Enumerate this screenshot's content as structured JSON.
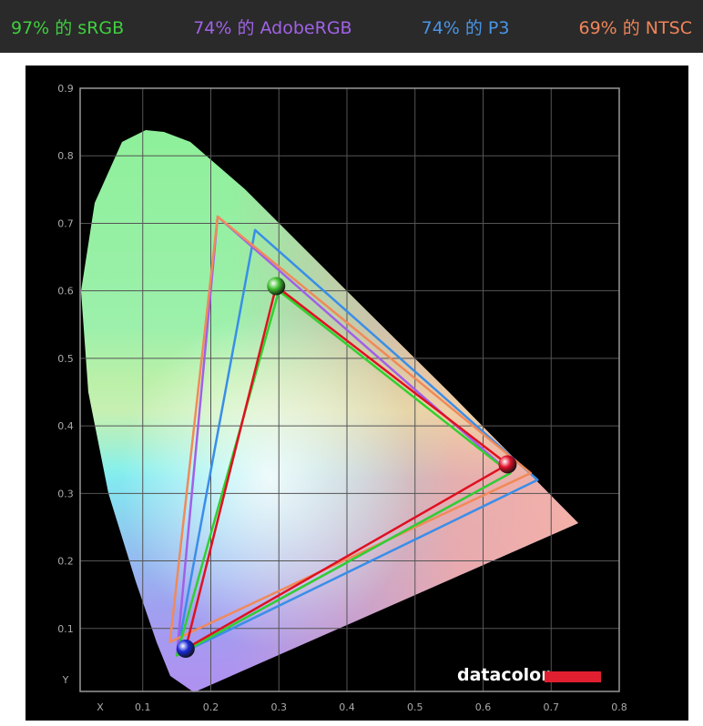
{
  "header": {
    "labels": [
      {
        "text": "97% 的 sRGB",
        "color": "#3fcf3f"
      },
      {
        "text": "74% 的 AdobeRGB",
        "color": "#a062e6"
      },
      {
        "text": "74% 的 P3",
        "color": "#4a94e6"
      },
      {
        "text": "69% 的 NTSC",
        "color": "#f0855a"
      }
    ]
  },
  "logo": "datacolor",
  "chart_data": {
    "type": "gamut",
    "xlim": [
      0,
      0.8
    ],
    "ylim": [
      0,
      0.9
    ],
    "xticks": [
      {
        "value": 0,
        "label": "X"
      },
      0.1,
      0.2,
      0.3,
      0.4,
      0.5,
      0.6,
      0.7,
      0.8
    ],
    "yticks": [
      {
        "value": 0,
        "label": "Y"
      },
      0.1,
      0.2,
      0.3,
      0.4,
      0.5,
      0.6,
      0.7,
      0.8,
      0.9
    ],
    "grid": true,
    "series": [
      {
        "color": "#3a8ee8",
        "x": [
          0.68,
          0.265,
          0.15
        ],
        "values": [
          0.32,
          0.69,
          0.06
        ]
      },
      {
        "color": "#a060e8",
        "x": [
          0.64,
          0.21,
          0.15
        ],
        "values": [
          0.33,
          0.71,
          0.06
        ]
      },
      {
        "color": "#f08a5a",
        "x": [
          0.67,
          0.21,
          0.14
        ],
        "values": [
          0.33,
          0.71,
          0.08
        ]
      },
      {
        "color": "#30d030",
        "x": [
          0.64,
          0.3,
          0.15
        ],
        "values": [
          0.33,
          0.6,
          0.06
        ]
      },
      {
        "color": "#e01020",
        "x": [
          0.636,
          0.296,
          0.163
        ],
        "values": [
          0.343,
          0.607,
          0.07
        ]
      }
    ],
    "points": {
      "x": [
        0.636,
        0.296,
        0.163
      ],
      "values": [
        0.343,
        0.607,
        0.07
      ],
      "colors": [
        "#e0102a",
        "#40c030",
        "#1a2ad8"
      ]
    }
  }
}
